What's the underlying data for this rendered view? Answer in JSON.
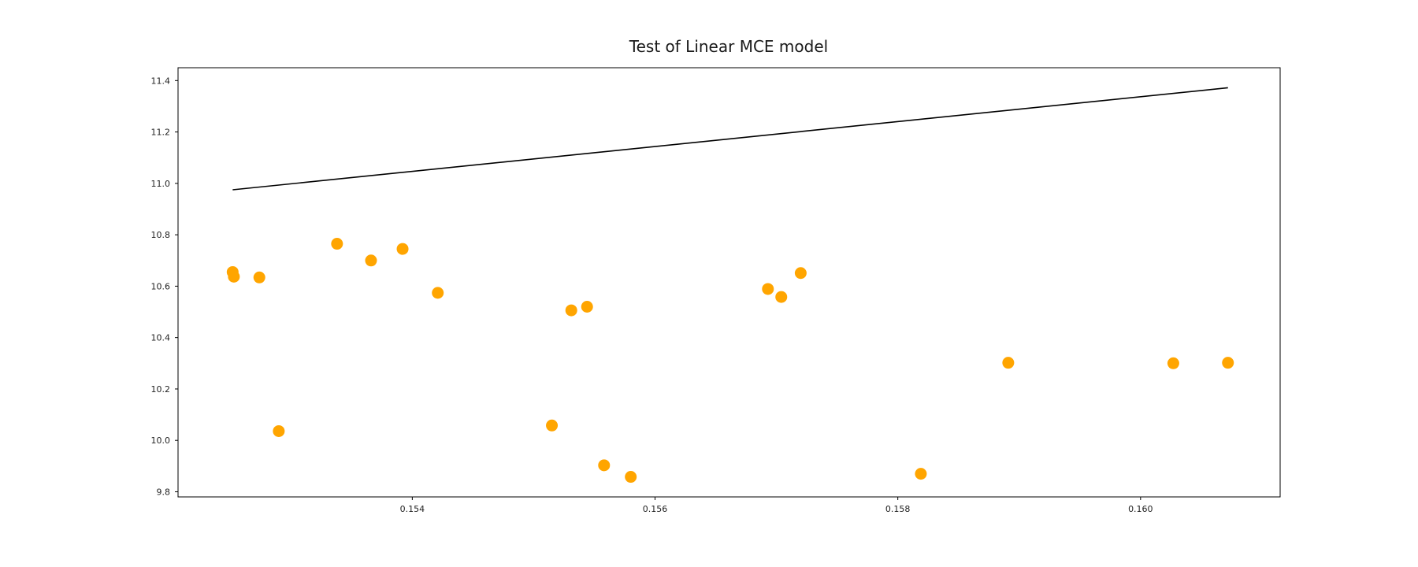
{
  "chart_data": {
    "type": "scatter",
    "title": "Test of Linear MCE model",
    "xlabel": "",
    "ylabel": "",
    "xlim": [
      0.15207,
      0.16115
    ],
    "ylim": [
      9.78,
      11.45
    ],
    "xticks": [
      0.154,
      0.156,
      0.158,
      0.16
    ],
    "xtick_labels": [
      "0.154",
      "0.156",
      "0.158",
      "0.160"
    ],
    "yticks": [
      9.8,
      10.0,
      10.2,
      10.4,
      10.6,
      10.8,
      11.0,
      11.2,
      11.4
    ],
    "ytick_labels": [
      "9.8",
      "10.0",
      "10.2",
      "10.4",
      "10.6",
      "10.8",
      "11.0",
      "11.2",
      "11.4"
    ],
    "grid": false,
    "series": [
      {
        "kind": "scatter",
        "color": "#FFA500",
        "x": [
          0.15252,
          0.15253,
          0.15274,
          0.1529,
          0.15338,
          0.15366,
          0.15392,
          0.15421,
          0.15515,
          0.15531,
          0.15544,
          0.15558,
          0.1558,
          0.15693,
          0.15704,
          0.1572,
          0.15819,
          0.15891,
          0.16027,
          0.16072
        ],
        "y": [
          10.655,
          10.637,
          10.634,
          10.036,
          10.765,
          10.7,
          10.745,
          10.574,
          10.058,
          10.506,
          10.52,
          9.903,
          9.858,
          10.589,
          10.558,
          10.651,
          9.87,
          10.302,
          10.3,
          10.302
        ]
      },
      {
        "kind": "line",
        "color": "#000000",
        "x": [
          0.15252,
          0.16072
        ],
        "y": [
          10.975,
          11.372
        ]
      }
    ]
  }
}
